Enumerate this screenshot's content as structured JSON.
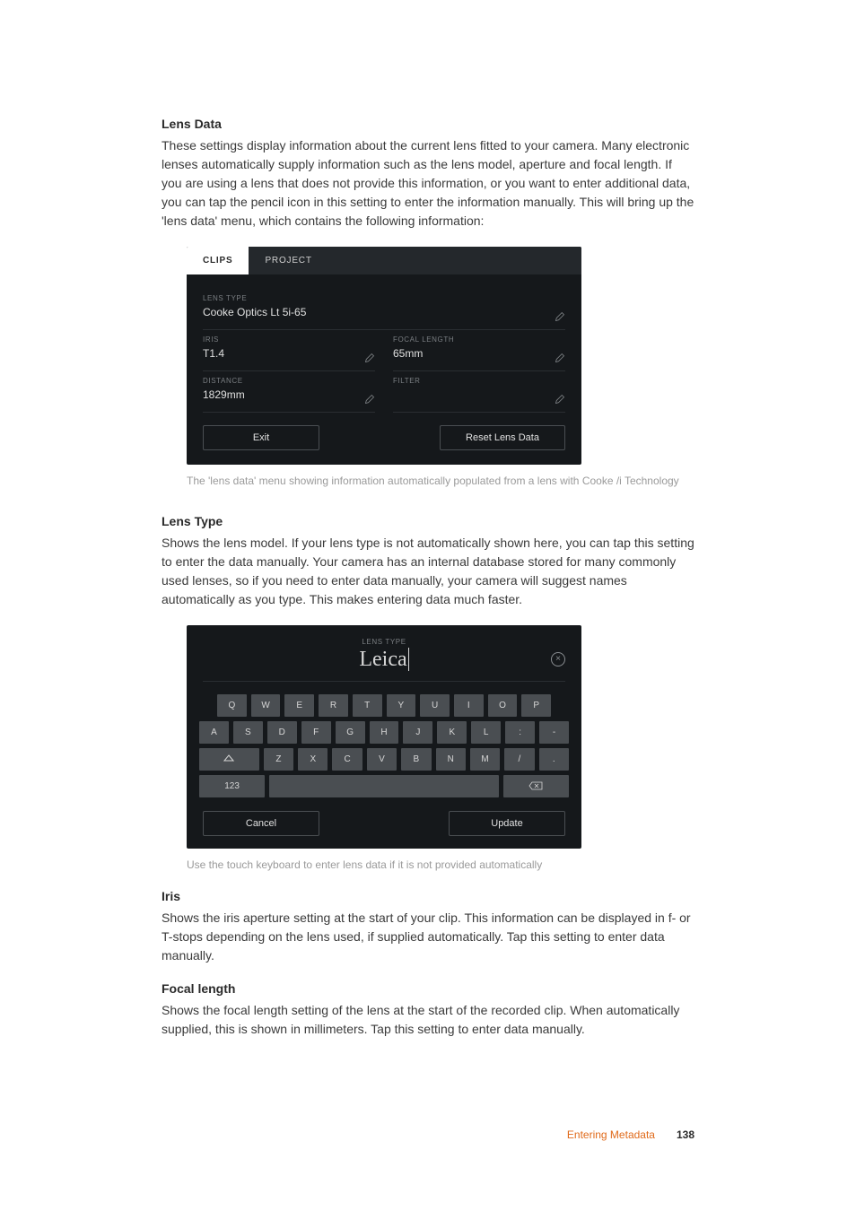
{
  "s1": {
    "title": "Lens Data",
    "body": "These settings display information about the current lens fitted to your camera. Many electronic lenses automatically supply information such as the lens model, aperture and focal length. If you are using a lens that does not provide this information, or you want to enter additional data, you can tap the pencil icon in this setting to enter the information manually. This will bring up the 'lens data' menu, which contains the following information:"
  },
  "lensdata": {
    "tab_clips": "CLIPS",
    "tab_project": "PROJECT",
    "lensType": {
      "label": "LENS TYPE",
      "value": "Cooke Optics Lt 5i-65"
    },
    "iris": {
      "label": "IRIS",
      "value": "T1.4"
    },
    "focal": {
      "label": "FOCAL LENGTH",
      "value": "65mm"
    },
    "distance": {
      "label": "DISTANCE",
      "value": "1829mm"
    },
    "filter": {
      "label": "FILTER",
      "value": ""
    },
    "exit": "Exit",
    "reset": "Reset Lens Data"
  },
  "caption1": "The 'lens data' menu showing information automatically populated from a lens with Cooke /i Technology",
  "s2": {
    "title": "Lens Type",
    "body": "Shows the lens model. If your lens type is not automatically shown here, you can tap this setting to enter the data manually. Your camera has an internal database stored for many commonly used lenses, so if you need to enter data manually, your camera will suggest names automatically as you type. This makes entering data much faster."
  },
  "kb": {
    "label": "LENS TYPE",
    "value": "Leica",
    "clear": "×",
    "row1": [
      "Q",
      "W",
      "E",
      "R",
      "T",
      "Y",
      "U",
      "I",
      "O",
      "P"
    ],
    "row2": [
      "A",
      "S",
      "D",
      "F",
      "G",
      "H",
      "J",
      "K",
      "L",
      ":",
      "-"
    ],
    "row3_mid": [
      "Z",
      "X",
      "C",
      "V",
      "B",
      "N",
      "M",
      "/",
      "."
    ],
    "numKey": "123",
    "cancel": "Cancel",
    "update": "Update"
  },
  "caption2": "Use the touch keyboard to enter lens data if it is not provided automatically",
  "s3": {
    "title": "Iris",
    "body": "Shows the iris aperture setting at the start of your clip. This information can be displayed in f- or T-stops depending on the lens used, if supplied automatically. Tap this setting to enter data manually."
  },
  "s4": {
    "title": "Focal length",
    "body": "Shows the focal length setting of the lens at the start of the recorded clip. When automatically supplied, this is shown in millimeters. Tap this setting to enter data manually."
  },
  "footer": {
    "section": "Entering Metadata",
    "page": "138"
  },
  "colors": {
    "panel_bg": "#15181b",
    "tab_bg": "#24282c",
    "key_bg": "#4a4e52",
    "accent": "#e06a1a"
  }
}
